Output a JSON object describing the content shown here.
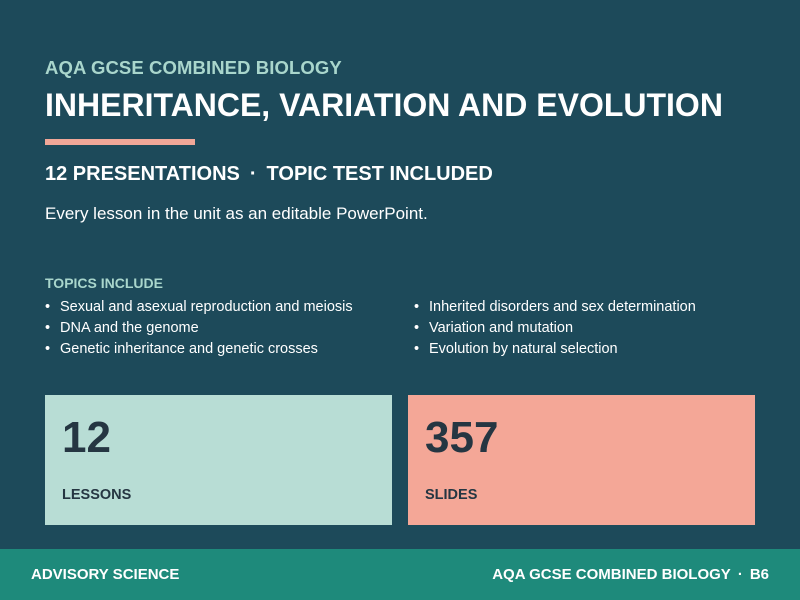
{
  "header": {
    "kicker": "AQA GCSE COMBINED BIOLOGY",
    "title": "INHERITANCE, VARIATION AND EVOLUTION"
  },
  "summary": {
    "presentations": "12 PRESENTATIONS",
    "separator": "·",
    "test": "TOPIC TEST INCLUDED",
    "description": "Every lesson in the unit as an editable PowerPoint."
  },
  "topics": {
    "heading": "TOPICS INCLUDE",
    "bullet": "•",
    "left": [
      "Sexual and asexual reproduction and meiosis",
      "DNA and the genome",
      "Genetic inheritance and genetic crosses"
    ],
    "right": [
      "Inherited disorders and sex determination",
      "Variation and mutation",
      "Evolution by natural selection"
    ]
  },
  "stats": {
    "lessons": {
      "value": "12",
      "label": "LESSONS"
    },
    "slides": {
      "value": "357",
      "label": "SLIDES"
    }
  },
  "footer": {
    "brand": "ADVISORY SCIENCE",
    "course": "AQA GCSE COMBINED BIOLOGY",
    "separator": "·",
    "code": "B6"
  },
  "colors": {
    "background": "#1d4a5a",
    "accent_teal": "#a9d6cc",
    "accent_coral": "#f0a798",
    "card_lessons": "#b8ddd5",
    "card_slides": "#f4a797",
    "footer": "#1e8a7b",
    "card_text": "#253642"
  }
}
